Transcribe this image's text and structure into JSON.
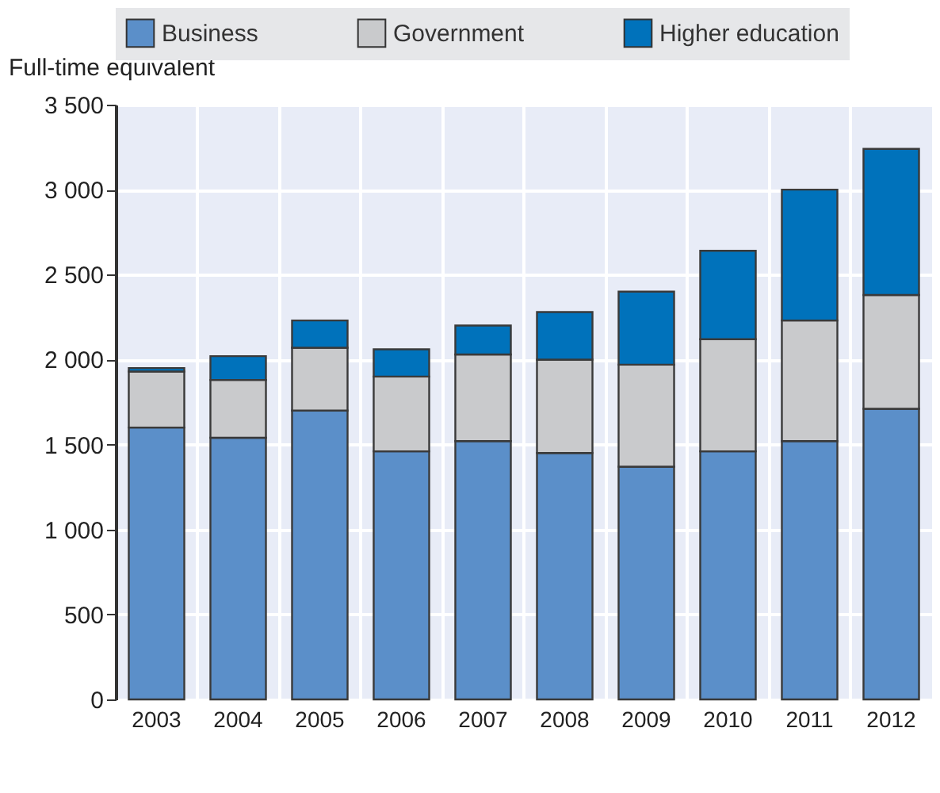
{
  "chart_data": {
    "type": "bar",
    "stacked": true,
    "ylabel": "Full-time equivalent",
    "categories": [
      "2003",
      "2004",
      "2005",
      "2006",
      "2007",
      "2008",
      "2009",
      "2010",
      "2011",
      "2012"
    ],
    "series": [
      {
        "name": "Business",
        "color": "#5b8fc9",
        "values": [
          1600,
          1540,
          1700,
          1460,
          1520,
          1450,
          1370,
          1460,
          1520,
          1710
        ]
      },
      {
        "name": "Government",
        "color": "#c9cacc",
        "values": [
          330,
          340,
          370,
          440,
          510,
          550,
          600,
          660,
          710,
          670
        ]
      },
      {
        "name": "Higher education",
        "color": "#0072bb",
        "values": [
          20,
          140,
          160,
          160,
          170,
          280,
          430,
          520,
          770,
          860
        ]
      }
    ],
    "ylim": [
      0,
      3500
    ],
    "yticks": [
      0,
      500,
      {
        "value": 1000,
        "label": "1 000"
      },
      {
        "value": 1500,
        "label": "1 500"
      },
      {
        "value": 2000,
        "label": "2 000"
      },
      {
        "value": 2500,
        "label": "2 500"
      },
      {
        "value": 3000,
        "label": "3 000"
      },
      {
        "value": 3500,
        "label": "3 500"
      }
    ],
    "grid": true,
    "legend": "top"
  }
}
